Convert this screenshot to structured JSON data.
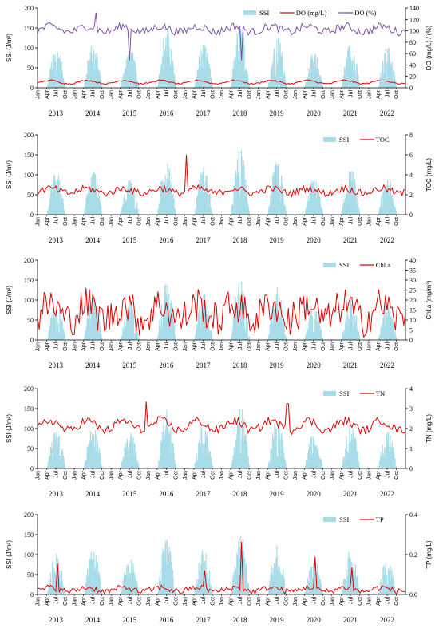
{
  "chart_data": [
    {
      "type": "bar+line",
      "panel": "SSI-DO",
      "ylabel": "SSI (J/m²)",
      "y2label": "DO (mg/L) / (%)",
      "ylim": [
        0,
        200
      ],
      "yticks": [
        0,
        50,
        100,
        150,
        200
      ],
      "y2lim": [
        0,
        140
      ],
      "y2ticks": [
        0,
        20,
        40,
        60,
        80,
        100,
        120,
        140
      ],
      "month_labels": [
        "Jan",
        "Apr",
        "Jul",
        "Oct"
      ],
      "years": [
        "2013",
        "2014",
        "2015",
        "2016",
        "2017",
        "2018",
        "2019",
        "2020",
        "2021",
        "2022"
      ],
      "ssi_peaks": [
        105,
        115,
        100,
        152,
        118,
        170,
        135,
        90,
        115,
        105
      ],
      "series": [
        {
          "name": "SSI",
          "color": "#a8dde8",
          "kind": "bar"
        },
        {
          "name": "DO (mg/L)",
          "color": "#e00000",
          "kind": "line",
          "mean": 10,
          "amp": 3,
          "noise": 1.2
        },
        {
          "name": "DO (%)",
          "color": "#7a4fa8",
          "kind": "line",
          "mean": 103,
          "amp": 5,
          "noise": 7,
          "dips": [
            [
              2015.5,
              48
            ],
            [
              2018.55,
              48
            ],
            [
              2014.6,
              132
            ]
          ]
        }
      ]
    },
    {
      "type": "bar+line",
      "panel": "SSI-TOC",
      "ylabel": "SSI (J/m²)",
      "y2label": "TOC (mg/L)",
      "ylim": [
        0,
        200
      ],
      "yticks": [
        0,
        50,
        100,
        150,
        200
      ],
      "y2lim": [
        0,
        8
      ],
      "y2ticks": [
        0,
        2,
        4,
        6,
        8
      ],
      "month_labels": [
        "Jan",
        "Apr",
        "Jul",
        "Oct"
      ],
      "years": [
        "2013",
        "2014",
        "2015",
        "2016",
        "2017",
        "2018",
        "2019",
        "2020",
        "2021",
        "2022"
      ],
      "ssi_peaks": [
        110,
        115,
        95,
        150,
        125,
        168,
        135,
        92,
        118,
        100
      ],
      "series": [
        {
          "name": "SSI",
          "color": "#a8dde8",
          "kind": "bar"
        },
        {
          "name": "TOC",
          "color": "#e00000",
          "kind": "line",
          "mean": 2.4,
          "amp": 0.25,
          "noise": 0.35,
          "dips": [
            [
              2017.05,
              6.0
            ]
          ]
        }
      ]
    },
    {
      "type": "bar+line",
      "panel": "SSI-Chla",
      "ylabel": "SSI (J/m²)",
      "y2label": "Chl.a (mg/m³)",
      "ylim": [
        0,
        200
      ],
      "yticks": [
        0,
        50,
        100,
        150,
        200
      ],
      "y2lim": [
        0,
        40
      ],
      "y2ticks": [
        0,
        5,
        10,
        15,
        20,
        25,
        30,
        35,
        40
      ],
      "month_labels": [
        "Jan",
        "Apr",
        "Jul",
        "Oct"
      ],
      "years": [
        "2013",
        "2014",
        "2015",
        "2016",
        "2017",
        "2018",
        "2019",
        "2020",
        "2021",
        "2022"
      ],
      "ssi_peaks": [
        95,
        112,
        90,
        150,
        120,
        165,
        132,
        88,
        112,
        100
      ],
      "series": [
        {
          "name": "SSI",
          "color": "#a8dde8",
          "kind": "bar"
        },
        {
          "name": "Chl.a",
          "color": "#e00000",
          "kind": "line",
          "mean": 14,
          "amp": 4,
          "noise": 9
        }
      ]
    },
    {
      "type": "bar+line",
      "panel": "SSI-TN",
      "ylabel": "SSI (J/m²)",
      "y2label": "TN (mg/L)",
      "ylim": [
        0,
        200
      ],
      "yticks": [
        0,
        50,
        100,
        150,
        200
      ],
      "y2lim": [
        0,
        4
      ],
      "y2ticks": [
        0,
        1,
        2,
        3,
        4
      ],
      "month_labels": [
        "Jan",
        "Apr",
        "Jul",
        "Oct"
      ],
      "years": [
        "2013",
        "2014",
        "2015",
        "2016",
        "2017",
        "2018",
        "2019",
        "2020",
        "2021",
        "2022"
      ],
      "ssi_peaks": [
        100,
        112,
        95,
        150,
        118,
        160,
        130,
        92,
        115,
        100
      ],
      "series": [
        {
          "name": "SSI",
          "color": "#a8dde8",
          "kind": "bar"
        },
        {
          "name": "TN",
          "color": "#e00000",
          "kind": "line",
          "mean": 2.15,
          "amp": 0.25,
          "noise": 0.22,
          "dips": [
            [
              2015.95,
              3.35
            ],
            [
              2019.8,
              3.25
            ]
          ]
        }
      ]
    },
    {
      "type": "bar+line",
      "panel": "SSI-TP",
      "ylabel": "SSI (J/m²)",
      "y2label": "TP (mg/L)",
      "ylim": [
        0,
        200
      ],
      "yticks": [
        0,
        50,
        100,
        150,
        200
      ],
      "y2lim": [
        0,
        0.4
      ],
      "y2ticks": [
        0.0,
        0.2,
        0.4
      ],
      "month_labels": [
        "Jan",
        "Apr",
        "Jul",
        "Oct"
      ],
      "years": [
        "2013",
        "2014",
        "2015",
        "2016",
        "2017",
        "2018",
        "2019",
        "2020",
        "2021",
        "2022"
      ],
      "ssi_peaks": [
        105,
        112,
        95,
        150,
        118,
        168,
        132,
        92,
        115,
        100
      ],
      "series": [
        {
          "name": "SSI",
          "color": "#a8dde8",
          "kind": "bar"
        },
        {
          "name": "TP",
          "color": "#e00000",
          "kind": "line",
          "mean": 0.025,
          "amp": 0.01,
          "noise": 0.015,
          "dips": [
            [
              2013.55,
              0.155
            ],
            [
              2018.55,
              0.265
            ],
            [
              2020.55,
              0.19
            ],
            [
              2021.55,
              0.135
            ],
            [
              2017.55,
              0.12
            ]
          ]
        }
      ]
    }
  ]
}
